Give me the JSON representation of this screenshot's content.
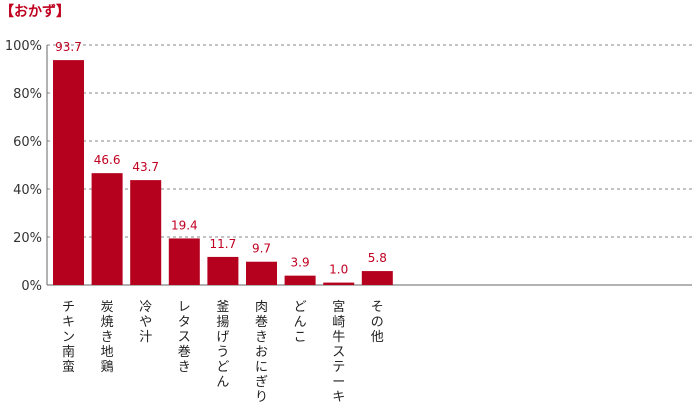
{
  "chart_data": {
    "type": "bar",
    "title": "【おかず】",
    "categories": [
      "チキン南蛮",
      "炭焼き地鶏",
      "冷や汁",
      "レタス巻き",
      "釜揚げうどん",
      "肉巻きおにぎり",
      "どんこ",
      "宮崎牛ステーキ",
      "その他"
    ],
    "values": [
      93.7,
      46.6,
      43.7,
      19.4,
      11.7,
      9.7,
      3.9,
      1.0,
      5.8
    ],
    "data_labels": [
      "93.7",
      "46.6",
      "43.7",
      "19.4",
      "11.7",
      "9.7",
      "3.9",
      "1.0",
      "5.8"
    ],
    "y_ticks": [
      "0%",
      "20%",
      "40%",
      "60%",
      "80%",
      "100%"
    ],
    "y_tick_values": [
      0,
      20,
      40,
      60,
      80,
      100
    ],
    "ylim": [
      0,
      100
    ],
    "grid": "dashed-horizontal",
    "bar_color": "#b5001e",
    "label_color": "#c00020"
  }
}
